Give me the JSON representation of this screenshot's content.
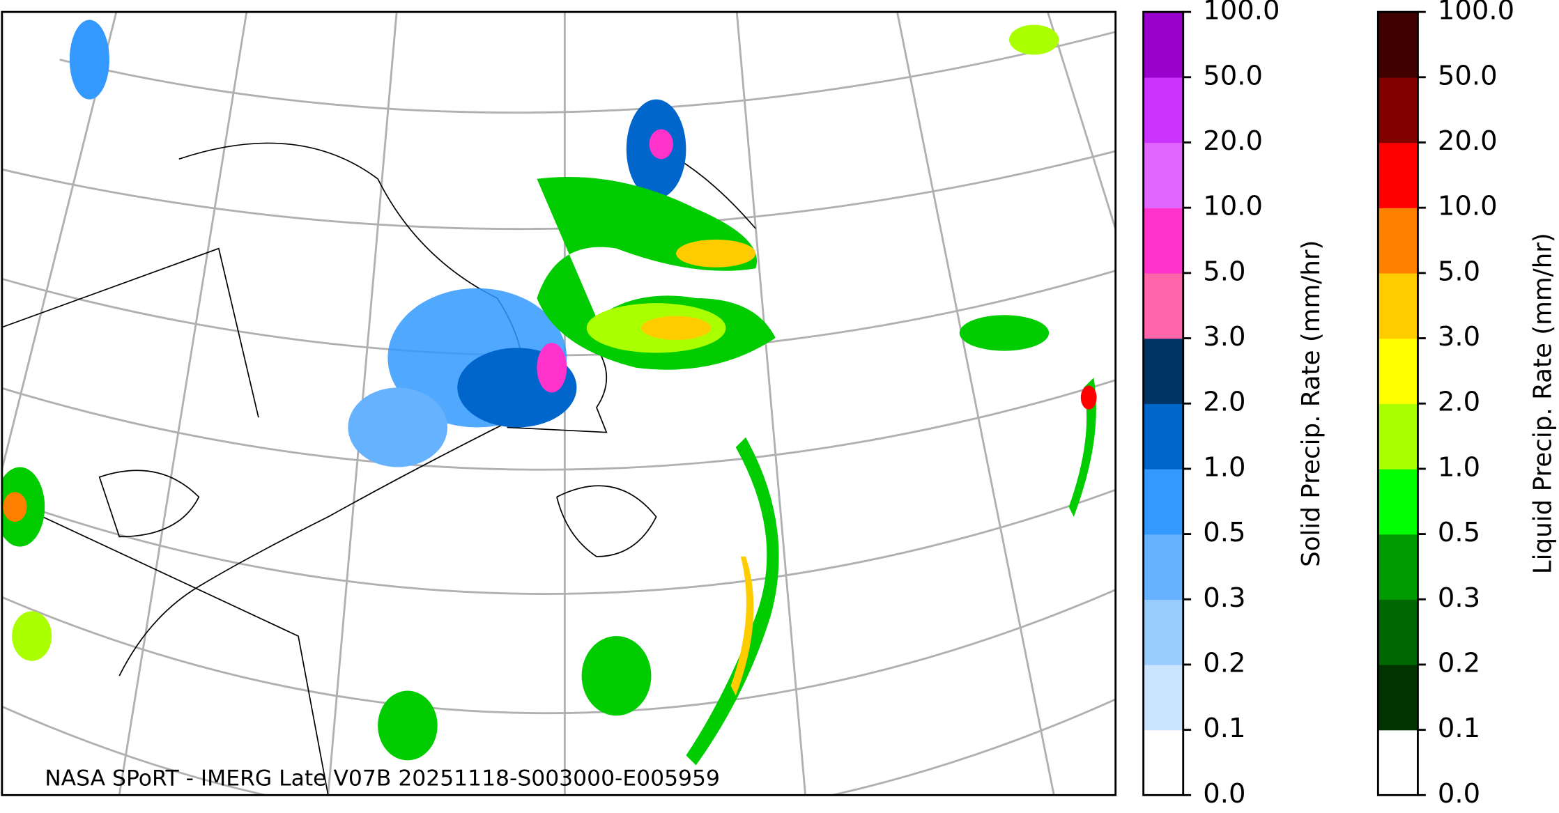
{
  "map": {
    "credit": "NASA SPoRT - IMERG Late V07B 20251118-S003000-E005959"
  },
  "colorbars": [
    {
      "label": "Solid Precip. Rate (mm/hr)",
      "ticks": [
        {
          "value": 0,
          "label": "0.0"
        },
        {
          "value": 0.1,
          "label": "0.1"
        },
        {
          "value": 0.2,
          "label": "0.2"
        },
        {
          "value": 0.3,
          "label": "0.3"
        },
        {
          "value": 0.5,
          "label": "0.5"
        },
        {
          "value": 1,
          "label": "1.0"
        },
        {
          "value": 2,
          "label": "2.0"
        },
        {
          "value": 3,
          "label": "3.0"
        },
        {
          "value": 5,
          "label": "5.0"
        },
        {
          "value": 10,
          "label": "10.0"
        },
        {
          "value": 20,
          "label": "20.0"
        },
        {
          "value": 50,
          "label": "50.0"
        },
        {
          "value": 100,
          "label": "100.0"
        }
      ],
      "colors": [
        "#ffffff",
        "#cce5ff",
        "#99ccff",
        "#66b2ff",
        "#3399ff",
        "#0066cc",
        "#003366",
        "#ff66aa",
        "#ff33cc",
        "#e066ff",
        "#cc33ff",
        "#9900cc"
      ]
    },
    {
      "label": "Liquid Precip. Rate (mm/hr)",
      "ticks": [
        {
          "value": 0,
          "label": "0.0"
        },
        {
          "value": 0.1,
          "label": "0.1"
        },
        {
          "value": 0.2,
          "label": "0.2"
        },
        {
          "value": 0.3,
          "label": "0.3"
        },
        {
          "value": 0.5,
          "label": "0.5"
        },
        {
          "value": 1,
          "label": "1.0"
        },
        {
          "value": 2,
          "label": "2.0"
        },
        {
          "value": 3,
          "label": "3.0"
        },
        {
          "value": 5,
          "label": "5.0"
        },
        {
          "value": 10,
          "label": "10.0"
        },
        {
          "value": 20,
          "label": "20.0"
        },
        {
          "value": 50,
          "label": "50.0"
        },
        {
          "value": 100,
          "label": "100.0"
        }
      ],
      "colors": [
        "#ffffff",
        "#003300",
        "#006600",
        "#009900",
        "#00ff00",
        "#aaff00",
        "#ffff00",
        "#ffcc00",
        "#ff8000",
        "#ff0000",
        "#800000",
        "#400000"
      ]
    }
  ]
}
